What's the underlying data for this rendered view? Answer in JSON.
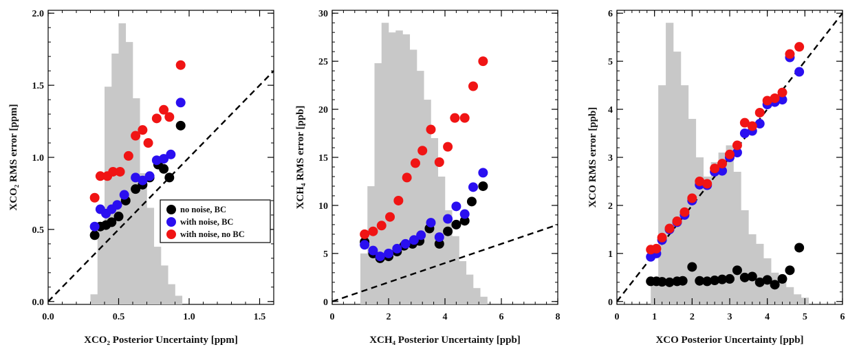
{
  "colors": {
    "no_noise_bc": "#000000",
    "with_noise_bc": "#2a0ff0",
    "with_noise_no_bc": "#f01414",
    "histogram": "#c8c8c8",
    "one_to_one_line": "#000000"
  },
  "chart_data": [
    {
      "type": "scatter",
      "xlabel": "XCO₂ Posterior Uncertainty [ppm]",
      "ylabel": "XCO₂ RMS error [ppm]",
      "xlim": [
        0,
        1.6
      ],
      "ylim": [
        -0.02,
        2.02
      ],
      "xticks": [
        0.0,
        0.5,
        1.0,
        1.5
      ],
      "xtick_labels": [
        "0.0",
        "0.5",
        "1.0",
        "1.5"
      ],
      "yticks": [
        0.0,
        0.5,
        1.0,
        1.5,
        2.0
      ],
      "ytick_labels": [
        "0.0",
        "0.5",
        "1.0",
        "1.5",
        "2.0"
      ],
      "one_to_one_line": true,
      "legend_position": "lower-right",
      "histogram": {
        "x_edges": [
          0.3,
          0.35,
          0.4,
          0.45,
          0.5,
          0.55,
          0.6,
          0.65,
          0.7,
          0.75,
          0.8,
          0.85,
          0.9,
          0.95
        ],
        "heights_in_y_units": [
          0.05,
          0.5,
          1.49,
          1.72,
          1.93,
          1.8,
          1.41,
          0.89,
          0.65,
          0.38,
          0.25,
          0.12,
          0.04
        ],
        "heights_fraction_of_max": [
          0.03,
          0.26,
          0.77,
          0.89,
          1.0,
          0.93,
          0.73,
          0.46,
          0.34,
          0.2,
          0.13,
          0.06,
          0.02
        ]
      },
      "series": [
        {
          "name": "no noise, BC",
          "x": [
            0.33,
            0.37,
            0.41,
            0.45,
            0.5,
            0.55,
            0.62,
            0.67,
            0.72,
            0.78,
            0.82,
            0.86,
            0.94
          ],
          "y": [
            0.46,
            0.52,
            0.53,
            0.55,
            0.59,
            0.7,
            0.78,
            0.81,
            0.86,
            0.95,
            0.92,
            0.86,
            1.22
          ]
        },
        {
          "name": "with noise, BC",
          "x": [
            0.33,
            0.37,
            0.41,
            0.45,
            0.49,
            0.54,
            0.62,
            0.67,
            0.72,
            0.77,
            0.82,
            0.87,
            0.94
          ],
          "y": [
            0.52,
            0.64,
            0.61,
            0.64,
            0.67,
            0.74,
            0.86,
            0.84,
            0.87,
            0.98,
            0.99,
            1.02,
            1.38
          ]
        },
        {
          "name": "with noise, no BC",
          "x": [
            0.33,
            0.37,
            0.42,
            0.46,
            0.51,
            0.57,
            0.62,
            0.67,
            0.71,
            0.77,
            0.82,
            0.86,
            0.94
          ],
          "y": [
            0.72,
            0.87,
            0.87,
            0.9,
            0.9,
            1.01,
            1.15,
            1.19,
            1.1,
            1.27,
            1.33,
            1.28,
            1.64
          ]
        }
      ]
    },
    {
      "type": "scatter",
      "xlabel": "XCH₄ Posterior Uncertainty [ppb]",
      "ylabel": "XCH₄ RMS error [ppb]",
      "xlim": [
        0,
        8
      ],
      "ylim": [
        -0.3,
        30.3
      ],
      "xticks": [
        0,
        2,
        4,
        6,
        8
      ],
      "xtick_labels": [
        "0",
        "2",
        "4",
        "6",
        "8"
      ],
      "yticks": [
        0,
        5,
        10,
        15,
        20,
        25,
        30
      ],
      "ytick_labels": [
        "0",
        "5",
        "10",
        "15",
        "20",
        "25",
        "30"
      ],
      "one_to_one_line": true,
      "histogram": {
        "x_edges": [
          1.0,
          1.25,
          1.5,
          1.75,
          2.0,
          2.25,
          2.5,
          2.75,
          3.0,
          3.25,
          3.5,
          3.75,
          4.0,
          4.25,
          4.5,
          4.75,
          5.0,
          5.25,
          5.5
        ],
        "heights_in_y_units": [
          5.0,
          12.0,
          24.8,
          29.0,
          28.0,
          28.2,
          27.8,
          26.2,
          24.0,
          21.0,
          17.0,
          13.0,
          9.5,
          6.8,
          4.2,
          2.8,
          1.4,
          0.5
        ],
        "heights_fraction_of_max": [
          0.17,
          0.41,
          0.86,
          1.0,
          0.97,
          0.97,
          0.96,
          0.9,
          0.83,
          0.72,
          0.59,
          0.45,
          0.33,
          0.23,
          0.14,
          0.1,
          0.05,
          0.02
        ]
      },
      "series": [
        {
          "name": "no noise, BC",
          "x": [
            1.15,
            1.45,
            1.7,
            2.0,
            2.3,
            2.55,
            2.85,
            3.1,
            3.45,
            3.8,
            4.1,
            4.4,
            4.7,
            4.95,
            5.35
          ],
          "y": [
            6.2,
            5.0,
            4.5,
            4.7,
            5.2,
            5.8,
            6.0,
            6.3,
            7.6,
            6.0,
            7.3,
            8.0,
            8.4,
            10.4,
            12.0
          ]
        },
        {
          "name": "with noise, BC",
          "x": [
            1.15,
            1.45,
            1.7,
            2.0,
            2.3,
            2.6,
            2.9,
            3.15,
            3.5,
            3.8,
            4.1,
            4.4,
            4.7,
            5.0,
            5.35
          ],
          "y": [
            5.9,
            5.3,
            4.7,
            5.0,
            5.5,
            6.0,
            6.4,
            6.9,
            8.2,
            6.7,
            8.6,
            9.9,
            9.1,
            11.9,
            13.4
          ]
        },
        {
          "name": "with noise, no BC",
          "x": [
            1.15,
            1.45,
            1.75,
            2.05,
            2.35,
            2.65,
            2.95,
            3.2,
            3.5,
            3.8,
            4.1,
            4.35,
            4.7,
            5.0,
            5.35
          ],
          "y": [
            7.0,
            7.3,
            7.9,
            8.8,
            10.5,
            12.9,
            14.4,
            15.7,
            17.9,
            14.5,
            16.1,
            19.1,
            19.1,
            22.4,
            25.0
          ]
        }
      ]
    },
    {
      "type": "scatter",
      "xlabel": "XCO Posterior Uncertainty [ppb]",
      "ylabel": "XCO RMS error [ppb]",
      "xlim": [
        0,
        6
      ],
      "ylim": [
        -0.06,
        6.06
      ],
      "xticks": [
        0,
        1,
        2,
        3,
        4,
        5,
        6
      ],
      "xtick_labels": [
        "0",
        "1",
        "2",
        "3",
        "4",
        "5",
        "6"
      ],
      "yticks": [
        0,
        1,
        2,
        3,
        4,
        5,
        6
      ],
      "ytick_labels": [
        "0",
        "1",
        "2",
        "3",
        "4",
        "5",
        "6"
      ],
      "one_to_one_line": true,
      "histogram": {
        "x_edges": [
          0.9,
          1.1,
          1.3,
          1.5,
          1.7,
          1.9,
          2.1,
          2.3,
          2.5,
          2.7,
          2.9,
          3.1,
          3.3,
          3.5,
          3.7,
          3.9,
          4.1,
          4.3,
          4.5,
          4.7,
          4.9,
          5.1
        ],
        "heights_in_y_units": [
          0.35,
          4.5,
          5.8,
          5.2,
          4.5,
          3.8,
          3.0,
          2.6,
          2.9,
          3.1,
          3.25,
          2.7,
          1.9,
          1.4,
          1.2,
          0.9,
          0.6,
          0.55,
          0.3,
          0.15,
          0.08
        ],
        "heights_fraction_of_max": [
          0.06,
          0.78,
          1.0,
          0.9,
          0.78,
          0.66,
          0.52,
          0.45,
          0.5,
          0.53,
          0.56,
          0.47,
          0.33,
          0.24,
          0.21,
          0.16,
          0.1,
          0.09,
          0.05,
          0.03,
          0.01
        ]
      },
      "series": [
        {
          "name": "no noise, BC",
          "x": [
            0.9,
            1.05,
            1.2,
            1.4,
            1.6,
            1.75,
            2.0,
            2.2,
            2.4,
            2.6,
            2.8,
            3.0,
            3.2,
            3.4,
            3.6,
            3.8,
            4.0,
            4.2,
            4.4,
            4.6,
            4.85
          ],
          "y": [
            0.42,
            0.42,
            0.41,
            0.4,
            0.42,
            0.43,
            0.72,
            0.43,
            0.42,
            0.44,
            0.46,
            0.47,
            0.65,
            0.5,
            0.52,
            0.4,
            0.45,
            0.35,
            0.47,
            0.65,
            1.12
          ]
        },
        {
          "name": "with noise, BC",
          "x": [
            0.9,
            1.05,
            1.2,
            1.4,
            1.6,
            1.8,
            2.0,
            2.2,
            2.4,
            2.6,
            2.8,
            3.0,
            3.2,
            3.4,
            3.6,
            3.8,
            4.0,
            4.2,
            4.4,
            4.6,
            4.85
          ],
          "y": [
            0.93,
            1.0,
            1.28,
            1.5,
            1.65,
            1.8,
            2.1,
            2.43,
            2.42,
            2.7,
            2.72,
            3.0,
            3.1,
            3.5,
            3.55,
            3.7,
            4.1,
            4.15,
            4.2,
            5.08,
            4.78
          ]
        },
        {
          "name": "with noise, no BC",
          "x": [
            0.9,
            1.05,
            1.2,
            1.4,
            1.6,
            1.8,
            2.0,
            2.2,
            2.4,
            2.6,
            2.8,
            3.0,
            3.2,
            3.4,
            3.6,
            3.8,
            4.0,
            4.2,
            4.4,
            4.6,
            4.85
          ],
          "y": [
            1.08,
            1.1,
            1.33,
            1.52,
            1.67,
            1.86,
            2.15,
            2.5,
            2.45,
            2.77,
            2.87,
            3.06,
            3.25,
            3.72,
            3.65,
            3.93,
            4.18,
            4.23,
            4.35,
            5.15,
            5.3
          ]
        }
      ]
    }
  ]
}
